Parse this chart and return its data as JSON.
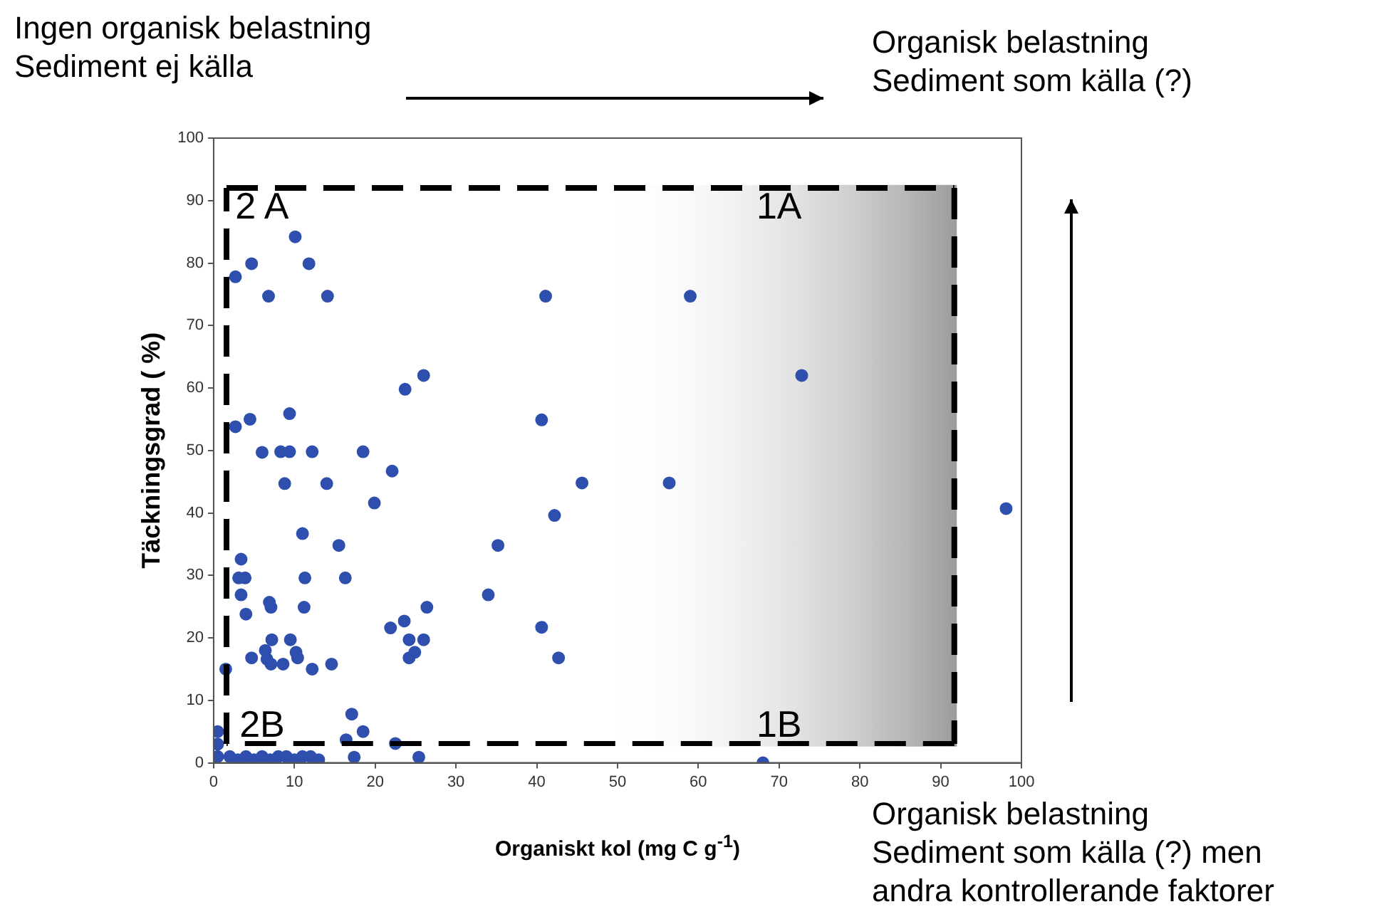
{
  "chart_data": {
    "type": "scatter",
    "xlabel": "Organiskt kol (mg C g$^{-1}$)",
    "ylabel": "Täckningsgrad ( %)",
    "xlim": [
      0,
      100
    ],
    "ylim": [
      0,
      100
    ],
    "xticks": [
      0,
      10,
      20,
      30,
      40,
      50,
      60,
      70,
      80,
      90,
      100
    ],
    "yticks": [
      0,
      10,
      20,
      30,
      40,
      50,
      60,
      70,
      80,
      90,
      100
    ],
    "grid": false,
    "bands": [
      {
        "axis": "x",
        "from": 48,
        "to": 92,
        "color": "#9c9c9c"
      }
    ],
    "legend": false,
    "marker": "circle",
    "series": [
      {
        "color": "#2f4fae",
        "x": [
          2.7,
          4.7,
          10.1,
          11.8,
          6.8,
          14.1,
          23.7,
          26.0,
          2.7,
          4.5,
          9.4,
          6.0,
          8.3,
          9.4,
          12.2,
          18.5,
          22.1,
          8.8,
          14.0,
          19.9,
          11.0,
          15.5,
          35.2,
          3.4,
          3.1,
          3.9,
          11.3,
          16.3,
          3.4,
          34.0,
          6.9,
          7.1,
          11.2,
          26.4,
          4.0,
          23.6,
          21.9,
          7.2,
          9.5,
          24.2,
          26.0,
          6.4,
          10.2,
          24.9,
          4.7,
          24.2,
          6.6,
          10.4,
          7.1,
          8.6,
          14.6,
          12.2,
          1.5,
          17.1,
          18.5,
          16.4,
          22.5,
          17.4,
          25.4,
          41.1,
          59.0,
          72.8,
          40.6,
          45.6,
          56.4,
          42.2,
          98.1,
          40.6,
          42.7,
          68.0,
          0.5,
          2,
          3,
          4,
          5,
          6,
          7,
          8,
          9,
          10,
          11,
          12,
          13,
          0.5,
          0.5
        ],
        "values": [
          77.8,
          79.9,
          84.2,
          79.9,
          74.7,
          74.7,
          59.8,
          62.0,
          53.8,
          55.0,
          55.9,
          49.7,
          49.8,
          49.8,
          49.8,
          49.8,
          46.7,
          44.7,
          44.7,
          41.6,
          36.7,
          34.8,
          34.8,
          32.6,
          29.6,
          29.6,
          29.6,
          29.6,
          26.9,
          26.9,
          25.7,
          24.9,
          24.9,
          24.9,
          23.8,
          22.7,
          21.6,
          19.7,
          19.7,
          19.7,
          19.7,
          18.0,
          17.7,
          17.7,
          16.8,
          16.8,
          16.6,
          16.8,
          15.8,
          15.8,
          15.8,
          15.0,
          15.0,
          7.8,
          5.0,
          3.7,
          3.1,
          0.9,
          0.9,
          74.7,
          74.7,
          62.0,
          54.9,
          44.8,
          44.8,
          39.6,
          40.7,
          21.7,
          16.8,
          0,
          1,
          1,
          0.5,
          1,
          0.5,
          1,
          0.5,
          1,
          1,
          0.5,
          1,
          1,
          0.5,
          5,
          3
        ]
      }
    ],
    "annotations": [
      "2 A",
      "1A",
      "2B",
      "1B",
      "Ingen organisk belastning\nSediment ej källa",
      "Organisk belastning\nSediment som källa (?)",
      "Organisk belastning\nSediment som källa (?) men\nandra kontrollerande faktorer"
    ]
  }
}
